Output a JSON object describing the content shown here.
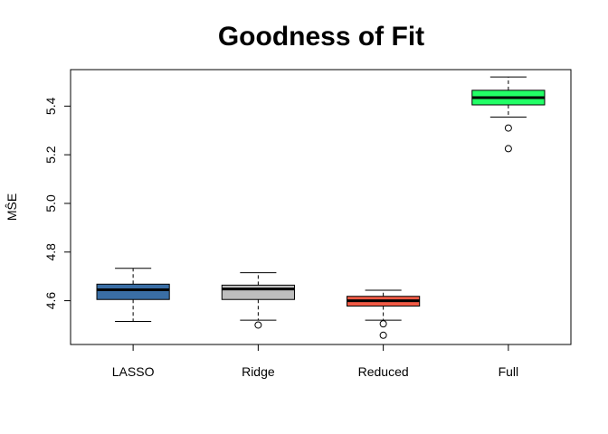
{
  "chart_data": {
    "type": "boxplot",
    "title": "Goodness of Fit",
    "xlabel": "",
    "ylabel": "MŜE",
    "ylim": [
      4.42,
      5.55
    ],
    "yticks": [
      "4.6",
      "4.8",
      "5.0",
      "5.2",
      "5.4"
    ],
    "ytick_values": [
      4.6,
      4.8,
      5.0,
      5.2,
      5.4
    ],
    "categories": [
      "LASSO",
      "Ridge",
      "Reduced",
      "Full"
    ],
    "boxes": [
      {
        "category": "LASSO",
        "color": "#3A6EA5",
        "whisker_low": 4.515,
        "q1": 4.605,
        "median": 4.645,
        "q3": 4.668,
        "whisker_high": 4.733,
        "outliers": []
      },
      {
        "category": "Ridge",
        "color": "#BEBEBE",
        "whisker_low": 4.52,
        "q1": 4.605,
        "median": 4.648,
        "q3": 4.664,
        "whisker_high": 4.715,
        "outliers": [
          4.5
        ]
      },
      {
        "category": "Reduced",
        "color": "#F15A45",
        "whisker_low": 4.52,
        "q1": 4.578,
        "median": 4.6,
        "q3": 4.618,
        "whisker_high": 4.643,
        "outliers": [
          4.505,
          4.458
        ]
      },
      {
        "category": "Full",
        "color": "#22FF66",
        "whisker_low": 5.355,
        "q1": 5.405,
        "median": 5.435,
        "q3": 5.465,
        "whisker_high": 5.52,
        "outliers": [
          5.31,
          5.225
        ]
      }
    ]
  }
}
